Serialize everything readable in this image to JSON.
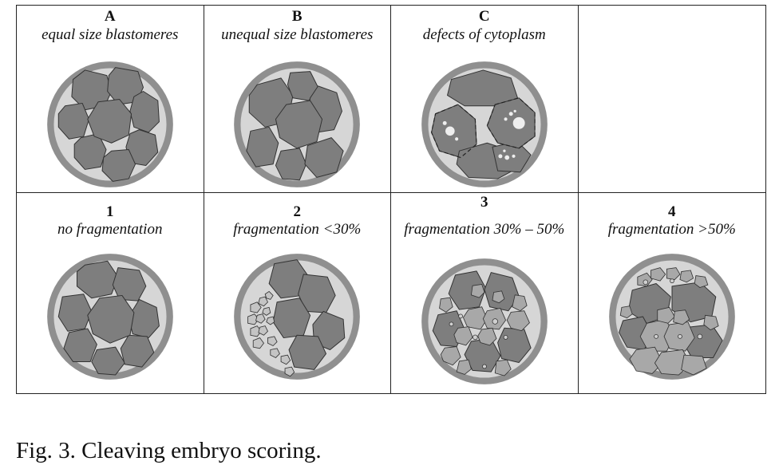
{
  "panels": [
    {
      "letter": "A",
      "desc": "equal size blastomeres"
    },
    {
      "letter": "B",
      "desc": "unequal size blastomeres"
    },
    {
      "letter": "C",
      "desc": "defects of cytoplasm"
    },
    {
      "letter": "",
      "desc": ""
    },
    {
      "letter": "1",
      "desc": "no fragmentation"
    },
    {
      "letter": "2",
      "desc": "fragmentation <30%"
    },
    {
      "letter": "3",
      "desc": "fragmentation 30% – 50%"
    },
    {
      "letter": "4",
      "desc": "fragmentation >50%"
    }
  ],
  "caption": "Fig. 3. Cleaving embryo scoring.",
  "colors": {
    "zona": "#8f8f8f",
    "space": "#d6d6d6",
    "cell": "#7e7e7e",
    "outline": "#333333",
    "vacuole": "#eeeeee"
  }
}
